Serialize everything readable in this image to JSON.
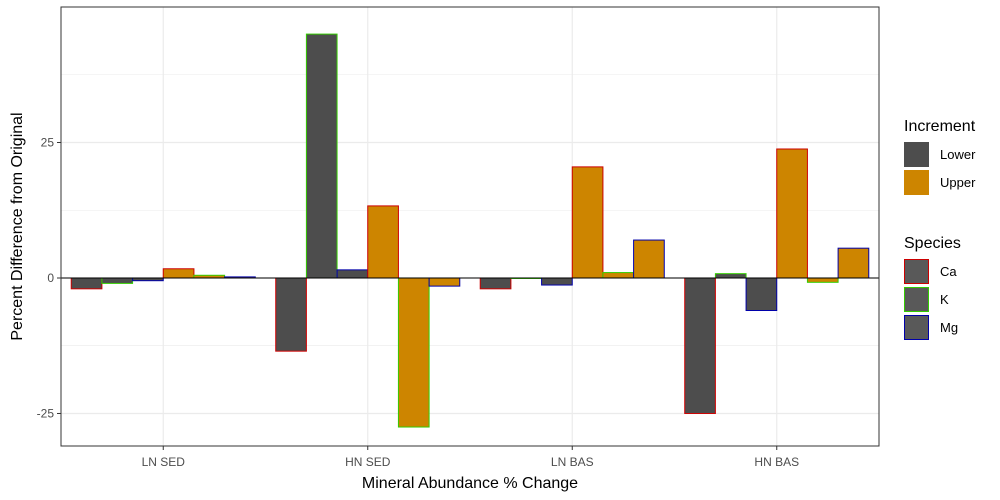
{
  "chart_data": {
    "type": "bar",
    "xlabel": "Mineral Abundance % Change",
    "ylabel": "Percent Difference from Original",
    "categories": [
      "LN SED",
      "HN SED",
      "LN BAS",
      "HN BAS"
    ],
    "ylim": [
      -31,
      50
    ],
    "yticks": [
      -25,
      0,
      25
    ],
    "grid": true,
    "increments": [
      "Lower",
      "Upper"
    ],
    "species": [
      "Ca",
      "K",
      "Mg"
    ],
    "series": [
      {
        "increment": "Lower",
        "species": "Ca",
        "values": [
          -2,
          -13.5,
          -2,
          -25
        ]
      },
      {
        "increment": "Lower",
        "species": "K",
        "values": [
          -1,
          45,
          0,
          0.8
        ]
      },
      {
        "increment": "Lower",
        "species": "Mg",
        "values": [
          -0.5,
          1.5,
          -1.3,
          -6
        ]
      },
      {
        "increment": "Upper",
        "species": "Ca",
        "values": [
          1.7,
          13.3,
          20.5,
          23.8
        ]
      },
      {
        "increment": "Upper",
        "species": "K",
        "values": [
          0.5,
          -27.5,
          1,
          -0.8
        ]
      },
      {
        "increment": "Upper",
        "species": "Mg",
        "values": [
          0.2,
          -1.5,
          7,
          5.5
        ]
      }
    ],
    "colors": {
      "fill": {
        "Lower": "#4d4d4d",
        "Upper": "#cd8500"
      },
      "outline": {
        "Ca": "#cc0000",
        "K": "#33cc00",
        "Mg": "#0000aa"
      },
      "grid": "#ebebeb",
      "zero_line": "#000000"
    },
    "legend": {
      "placement": "right",
      "increment_title": "Increment",
      "species_title": "Species",
      "species_key_fill": "#595959"
    }
  }
}
